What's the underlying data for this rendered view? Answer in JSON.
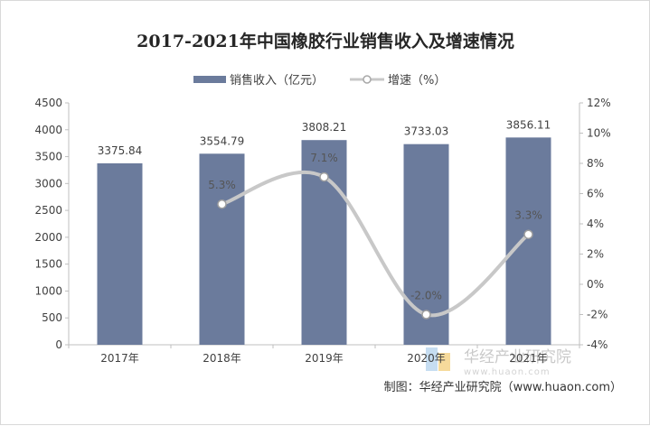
{
  "chart_data": {
    "type": "bar",
    "title": "2017-2021年中国橡胶行业销售收入及增速情况",
    "categories": [
      "2017年",
      "2018年",
      "2019年",
      "2020年",
      "2021年"
    ],
    "series": [
      {
        "name": "销售收入（亿元）",
        "type": "bar",
        "axis": "left",
        "color": "#6b7b9c",
        "values": [
          3375.84,
          3554.79,
          3808.21,
          3733.03,
          3856.11
        ],
        "labels": [
          "3375.84",
          "3554.79",
          "3808.21",
          "3733.03",
          "3856.11"
        ]
      },
      {
        "name": "增速（%）",
        "type": "line",
        "axis": "right",
        "color": "#c8c8c8",
        "values": [
          null,
          5.3,
          7.1,
          -2.0,
          3.3
        ],
        "labels": [
          "",
          "5.3%",
          "7.1%",
          "-2.0%",
          "3.3%"
        ]
      }
    ],
    "y_left": {
      "min": 0,
      "max": 4500,
      "step": 500,
      "ticks": [
        "0",
        "500",
        "1000",
        "1500",
        "2000",
        "2500",
        "3000",
        "3500",
        "4000",
        "4500"
      ]
    },
    "y_right": {
      "min": -4,
      "max": 12,
      "step": 2,
      "ticks": [
        "-4%",
        "-2%",
        "0%",
        "2%",
        "4%",
        "6%",
        "8%",
        "10%",
        "12%"
      ]
    },
    "legend": {
      "position": "top"
    },
    "grid": false
  },
  "credit": "制图：华经产业研究院（www.huaon.com）",
  "watermark": {
    "name": "华经产业研究院",
    "url": "www.huaon.com"
  }
}
